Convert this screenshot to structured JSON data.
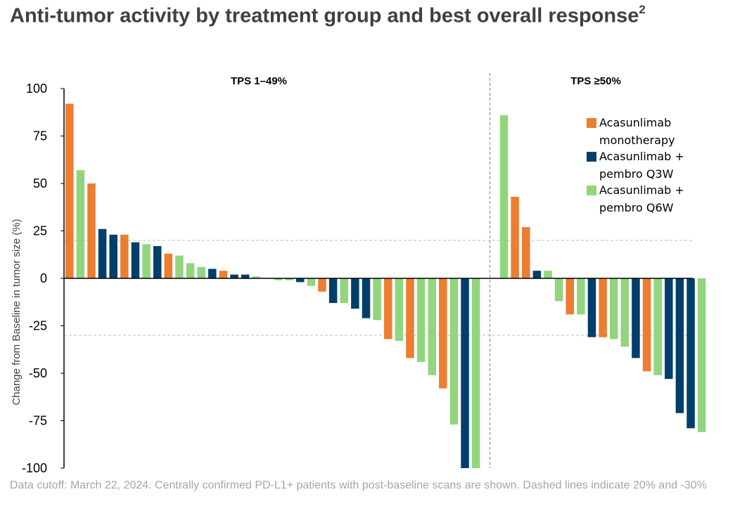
{
  "title": {
    "text": "Anti-tumor activity by treatment group and best overall response",
    "superscript": "2"
  },
  "footnote": "Data cutoff: March 22, 2024. Centrally confirmed PD-L1+ patients with post-baseline scans are shown. Dashed lines indicate 20% and -30%",
  "colors": {
    "monotherapy": "#ED7D31",
    "q3w": "#003F6B",
    "q6w": "#92D57E",
    "axis": "#000000",
    "reference_line": "#BFBFBF",
    "divider": "#7F7F7F",
    "text": "#404040"
  },
  "chart_data": {
    "type": "bar",
    "subtype": "waterfall",
    "ylabel": "Change from Baseline in tumor size (%)",
    "xlabel": "",
    "ylim": [
      -100,
      100
    ],
    "yticks": [
      100,
      75,
      50,
      25,
      0,
      -25,
      -50,
      -75,
      -100
    ],
    "grid": false,
    "reference_lines": [
      20,
      -30
    ],
    "panels": [
      {
        "label": "TPS 1–49%",
        "bars": [
          {
            "group": "monotherapy",
            "value": 92
          },
          {
            "group": "q6w",
            "value": 57
          },
          {
            "group": "monotherapy",
            "value": 50
          },
          {
            "group": "q3w",
            "value": 26
          },
          {
            "group": "q3w",
            "value": 23
          },
          {
            "group": "monotherapy",
            "value": 23
          },
          {
            "group": "q3w",
            "value": 19
          },
          {
            "group": "q6w",
            "value": 18
          },
          {
            "group": "q3w",
            "value": 17
          },
          {
            "group": "monotherapy",
            "value": 13
          },
          {
            "group": "q6w",
            "value": 12
          },
          {
            "group": "q6w",
            "value": 8
          },
          {
            "group": "q6w",
            "value": 6
          },
          {
            "group": "q3w",
            "value": 5
          },
          {
            "group": "monotherapy",
            "value": 4
          },
          {
            "group": "q3w",
            "value": 2
          },
          {
            "group": "q3w",
            "value": 2
          },
          {
            "group": "q6w",
            "value": 1
          },
          {
            "group": "q6w",
            "value": 0
          },
          {
            "group": "q6w",
            "value": -1
          },
          {
            "group": "q6w",
            "value": -1
          },
          {
            "group": "q3w",
            "value": -2
          },
          {
            "group": "q6w",
            "value": -4
          },
          {
            "group": "monotherapy",
            "value": -7
          },
          {
            "group": "q3w",
            "value": -13
          },
          {
            "group": "q6w",
            "value": -13
          },
          {
            "group": "q3w",
            "value": -16
          },
          {
            "group": "q3w",
            "value": -21
          },
          {
            "group": "q6w",
            "value": -22
          },
          {
            "group": "monotherapy",
            "value": -32
          },
          {
            "group": "q6w",
            "value": -33
          },
          {
            "group": "monotherapy",
            "value": -42
          },
          {
            "group": "q6w",
            "value": -44
          },
          {
            "group": "q6w",
            "value": -51
          },
          {
            "group": "monotherapy",
            "value": -58
          },
          {
            "group": "q6w",
            "value": -77
          },
          {
            "group": "q3w",
            "value": -100
          },
          {
            "group": "q6w",
            "value": -100
          }
        ]
      },
      {
        "label": "TPS ≥50%",
        "bars": [
          {
            "group": "q6w",
            "value": 86
          },
          {
            "group": "monotherapy",
            "value": 43
          },
          {
            "group": "monotherapy",
            "value": 27
          },
          {
            "group": "q3w",
            "value": 4
          },
          {
            "group": "q6w",
            "value": 4
          },
          {
            "group": "q6w",
            "value": -12
          },
          {
            "group": "monotherapy",
            "value": -19
          },
          {
            "group": "q6w",
            "value": -19
          },
          {
            "group": "q3w",
            "value": -31
          },
          {
            "group": "monotherapy",
            "value": -31
          },
          {
            "group": "q6w",
            "value": -32
          },
          {
            "group": "q6w",
            "value": -36
          },
          {
            "group": "q3w",
            "value": -42
          },
          {
            "group": "monotherapy",
            "value": -49
          },
          {
            "group": "q6w",
            "value": -51
          },
          {
            "group": "q3w",
            "value": -53
          },
          {
            "group": "q3w",
            "value": -71
          },
          {
            "group": "q3w",
            "value": -79
          },
          {
            "group": "q6w",
            "value": -81
          }
        ]
      }
    ],
    "legend": {
      "position": "top-right",
      "entries": [
        {
          "group": "monotherapy",
          "lines": [
            "Acasunlimab",
            "monotherapy"
          ]
        },
        {
          "group": "q3w",
          "lines": [
            "Acasunlimab +",
            "pembro Q3W"
          ]
        },
        {
          "group": "q6w",
          "lines": [
            "Acasunlimab +",
            "pembro Q6W"
          ]
        }
      ]
    }
  }
}
